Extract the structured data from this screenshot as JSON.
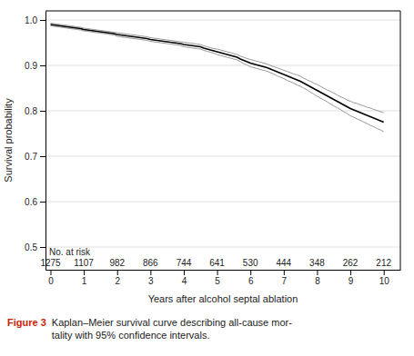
{
  "chart_data": {
    "type": "line",
    "xlabel": "Years after alcohol septal ablation",
    "ylabel": "Survival probability",
    "x": [
      0.0,
      0.1,
      0.2,
      0.3,
      0.4,
      0.5,
      0.6,
      0.7,
      0.8,
      0.9,
      1.0,
      1.1,
      1.2,
      1.3,
      1.4,
      1.5,
      1.6,
      1.7,
      1.8,
      1.9,
      2.0,
      2.1,
      2.2,
      2.3,
      2.4,
      2.5,
      2.6,
      2.7,
      2.8,
      2.9,
      3.0,
      3.1,
      3.2,
      3.3,
      3.4,
      3.5,
      3.6,
      3.7,
      3.8,
      3.9,
      4.0,
      4.1,
      4.2,
      4.3,
      4.4,
      4.5,
      4.6,
      4.7,
      4.8,
      4.9,
      5.0,
      5.1,
      5.2,
      5.3,
      5.4,
      5.5,
      5.6,
      5.7,
      5.8,
      5.9,
      6.0,
      6.1,
      6.2,
      6.3,
      6.4,
      6.5,
      6.6,
      6.7,
      6.8,
      6.9,
      7.0,
      7.1,
      7.2,
      7.3,
      7.4,
      7.5,
      7.6,
      7.7,
      7.8,
      7.9,
      8.0,
      8.1,
      8.2,
      8.3,
      8.4,
      8.5,
      8.6,
      8.7,
      8.8,
      8.9,
      9.0,
      9.1,
      9.2,
      9.3,
      9.4,
      9.5,
      9.6,
      9.7,
      9.8,
      9.9,
      10.0
    ],
    "series": [
      {
        "color": "#999999",
        "values": [
          0.987,
          0.986,
          0.985,
          0.984,
          0.983,
          0.982,
          0.981,
          0.98,
          0.979,
          0.978,
          0.976,
          0.975,
          0.974,
          0.973,
          0.972,
          0.971,
          0.97,
          0.969,
          0.968,
          0.967,
          0.964,
          0.963,
          0.962,
          0.961,
          0.96,
          0.959,
          0.958,
          0.957,
          0.956,
          0.955,
          0.953,
          0.952,
          0.951,
          0.95,
          0.949,
          0.948,
          0.947,
          0.946,
          0.945,
          0.944,
          0.941,
          0.94,
          0.939,
          0.938,
          0.937,
          0.936,
          0.933,
          0.931,
          0.929,
          0.927,
          0.924,
          0.922,
          0.92,
          0.918,
          0.916,
          0.914,
          0.912,
          0.908,
          0.904,
          0.901,
          0.897,
          0.895,
          0.893,
          0.891,
          0.889,
          0.887,
          0.884,
          0.881,
          0.877,
          0.874,
          0.871,
          0.867,
          0.864,
          0.861,
          0.857,
          0.854,
          0.85,
          0.846,
          0.841,
          0.837,
          0.832,
          0.828,
          0.824,
          0.82,
          0.815,
          0.811,
          0.807,
          0.803,
          0.798,
          0.794,
          0.789,
          0.786,
          0.782,
          0.779,
          0.775,
          0.772,
          0.768,
          0.765,
          0.761,
          0.758,
          0.754
        ]
      },
      {
        "color": "#999999",
        "values": [
          0.993,
          0.992,
          0.991,
          0.99,
          0.989,
          0.988,
          0.987,
          0.986,
          0.985,
          0.984,
          0.982,
          0.981,
          0.98,
          0.979,
          0.978,
          0.977,
          0.976,
          0.975,
          0.974,
          0.973,
          0.972,
          0.971,
          0.97,
          0.969,
          0.968,
          0.967,
          0.966,
          0.965,
          0.964,
          0.963,
          0.961,
          0.96,
          0.959,
          0.958,
          0.957,
          0.956,
          0.955,
          0.954,
          0.953,
          0.952,
          0.951,
          0.95,
          0.949,
          0.948,
          0.947,
          0.946,
          0.943,
          0.941,
          0.939,
          0.937,
          0.936,
          0.934,
          0.932,
          0.93,
          0.928,
          0.926,
          0.924,
          0.92,
          0.918,
          0.915,
          0.913,
          0.911,
          0.909,
          0.907,
          0.905,
          0.903,
          0.9,
          0.897,
          0.895,
          0.892,
          0.889,
          0.887,
          0.884,
          0.881,
          0.879,
          0.876,
          0.872,
          0.868,
          0.865,
          0.861,
          0.858,
          0.854,
          0.85,
          0.846,
          0.843,
          0.839,
          0.835,
          0.831,
          0.828,
          0.824,
          0.821,
          0.818,
          0.816,
          0.813,
          0.811,
          0.808,
          0.806,
          0.803,
          0.801,
          0.798,
          0.796
        ]
      },
      {
        "color": "#000000",
        "values": [
          0.99,
          0.989,
          0.988,
          0.987,
          0.986,
          0.985,
          0.984,
          0.983,
          0.982,
          0.981,
          0.979,
          0.978,
          0.977,
          0.976,
          0.975,
          0.974,
          0.973,
          0.972,
          0.971,
          0.97,
          0.968,
          0.967,
          0.966,
          0.965,
          0.964,
          0.963,
          0.962,
          0.961,
          0.96,
          0.959,
          0.957,
          0.956,
          0.955,
          0.954,
          0.953,
          0.952,
          0.951,
          0.95,
          0.949,
          0.948,
          0.946,
          0.945,
          0.944,
          0.943,
          0.942,
          0.941,
          0.938,
          0.936,
          0.934,
          0.932,
          0.93,
          0.928,
          0.926,
          0.924,
          0.922,
          0.92,
          0.918,
          0.914,
          0.911,
          0.908,
          0.905,
          0.903,
          0.901,
          0.899,
          0.897,
          0.895,
          0.892,
          0.889,
          0.886,
          0.883,
          0.88,
          0.877,
          0.874,
          0.871,
          0.868,
          0.865,
          0.861,
          0.857,
          0.853,
          0.849,
          0.845,
          0.841,
          0.837,
          0.833,
          0.829,
          0.825,
          0.821,
          0.817,
          0.813,
          0.809,
          0.805,
          0.802,
          0.799,
          0.796,
          0.793,
          0.79,
          0.787,
          0.784,
          0.781,
          0.778,
          0.775
        ]
      }
    ],
    "xlim": [
      -0.15,
      10.5
    ],
    "ylim": [
      0.45,
      1.02
    ],
    "xticks": [
      0,
      1,
      2,
      3,
      4,
      5,
      6,
      7,
      8,
      9,
      10
    ],
    "yticks": [
      0.5,
      0.6,
      0.7,
      0.8,
      0.9,
      {
        "value": 1.0,
        "label": "1.0"
      }
    ],
    "grid": true,
    "at_risk": {
      "label": "No. at risk",
      "x": [
        0,
        1,
        2,
        3,
        4,
        5,
        6,
        7,
        8,
        9,
        10
      ],
      "values": [
        1275,
        1107,
        982,
        866,
        744,
        641,
        530,
        444,
        348,
        262,
        212
      ]
    },
    "caption": {
      "label": "Figure 3",
      "color": "#cc2200",
      "text": [
        "Kaplan–Meier survival curve describing all-cause mor-",
        "tality with 95% confidence intervals."
      ]
    }
  }
}
